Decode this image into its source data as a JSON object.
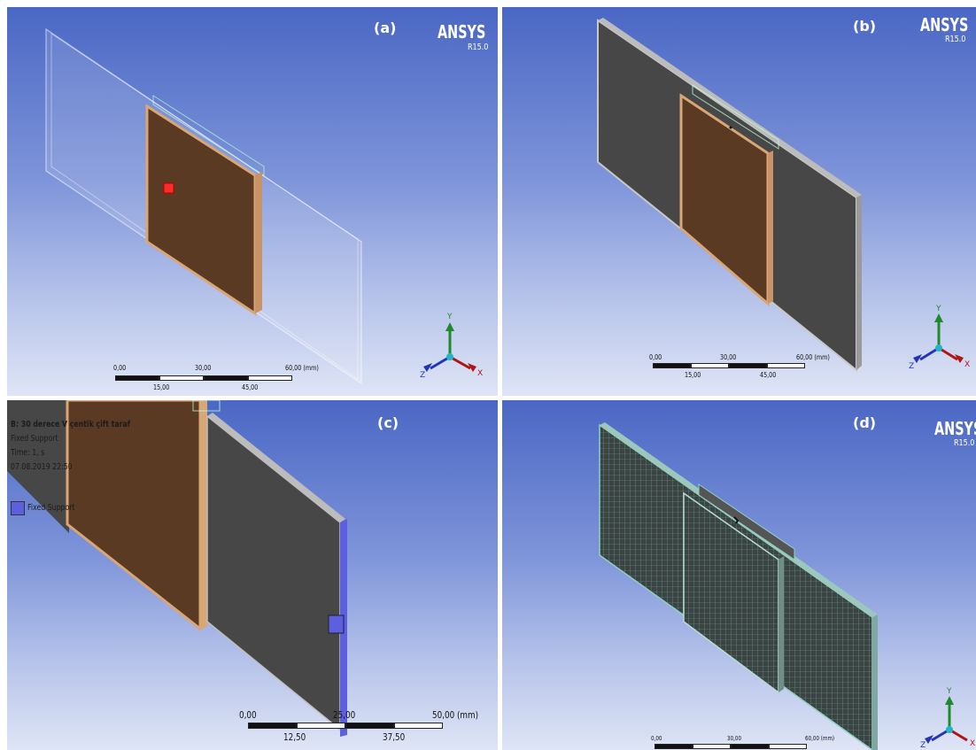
{
  "panels": {
    "a": {
      "label": "(a)",
      "brand": "ANSYS",
      "version": "R15.0",
      "scale": {
        "top": [
          "0,00",
          "30,00",
          "60,00 (mm)"
        ],
        "bottom": [
          "15,00",
          "45,00"
        ]
      },
      "axes": {
        "y": "Y",
        "x": "X",
        "z": "Z"
      }
    },
    "b": {
      "label": "(b)",
      "brand": "ANSYS",
      "version": "R15.0",
      "scale": {
        "top": [
          "0,00",
          "30,00",
          "60,00 (mm)"
        ],
        "bottom": [
          "15,00",
          "45,00"
        ]
      },
      "axes": {
        "y": "Y",
        "x": "X",
        "z": "Z"
      }
    },
    "c": {
      "label": "(c)",
      "info": [
        "B: 30 derece V çentik çift taraf",
        "Fixed Support",
        "Time: 1, s",
        "07.08.2019 22:50"
      ],
      "legend": "Fixed Support",
      "scale": {
        "top": [
          "0,00",
          "25,00",
          "50,00 (mm)"
        ],
        "bottom": [
          "12,50",
          "37,50"
        ]
      }
    },
    "d": {
      "label": "(d)",
      "brand": "ANSYS",
      "version": "R15.0",
      "scale": {
        "top": [
          "0,00",
          "30,00",
          "60,00 (mm)"
        ]
      },
      "axes": {
        "y": "Y",
        "x": "X",
        "z": "Z"
      }
    }
  },
  "colors": {
    "plate_dark": "#474747",
    "weld_brown": "#5a3a22",
    "weld_edge": "#d9a675",
    "fixed_support": "#5b5fe0",
    "load_marker": "#ff2b2b"
  }
}
